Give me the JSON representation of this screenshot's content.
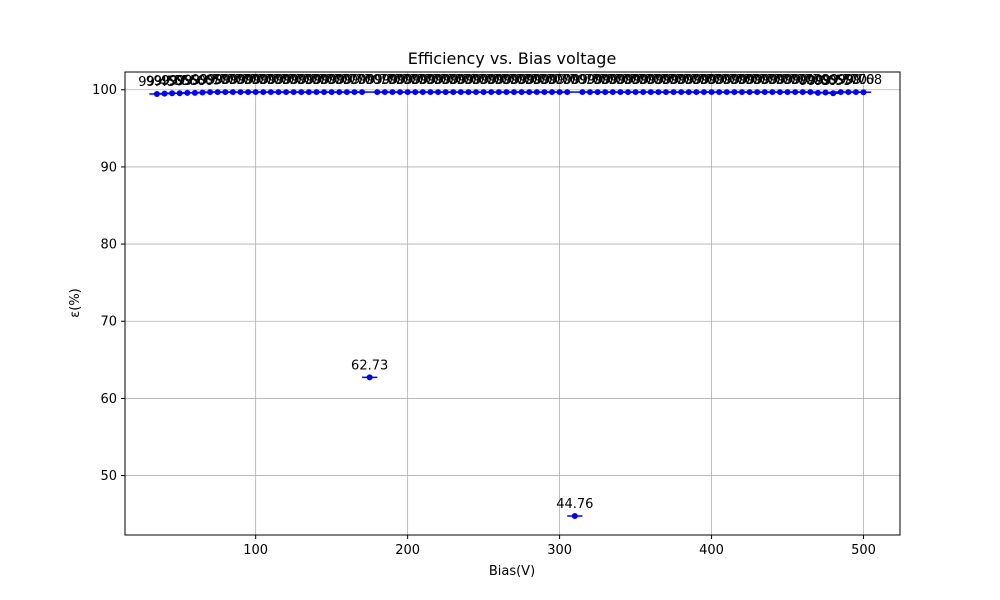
{
  "chart_data": {
    "type": "scatter",
    "title": "Efficiency vs. Bias voltage",
    "xlabel": "Bias(V)",
    "ylabel": "ε(%)",
    "xlim": [
      14,
      524
    ],
    "ylim": [
      42.3,
      102.3
    ],
    "xticks": [
      100,
      200,
      300,
      400,
      500
    ],
    "yticks": [
      50,
      60,
      70,
      80,
      90,
      100
    ],
    "grid": true,
    "marker_color": "#0000ff",
    "x_error": 5,
    "x": [
      35,
      40,
      45,
      50,
      55,
      60,
      65,
      70,
      75,
      80,
      85,
      90,
      95,
      100,
      105,
      110,
      115,
      120,
      125,
      130,
      135,
      140,
      145,
      150,
      155,
      160,
      165,
      170,
      175,
      180,
      185,
      190,
      195,
      200,
      205,
      210,
      215,
      220,
      225,
      230,
      235,
      240,
      245,
      250,
      255,
      260,
      265,
      270,
      275,
      280,
      285,
      290,
      295,
      300,
      305,
      310,
      315,
      320,
      325,
      330,
      335,
      340,
      345,
      350,
      355,
      360,
      365,
      370,
      375,
      380,
      385,
      390,
      395,
      400,
      405,
      410,
      415,
      420,
      425,
      430,
      435,
      440,
      445,
      450,
      455,
      460,
      465,
      470,
      475,
      480,
      485,
      490,
      495,
      500
    ],
    "y": [
      99.45,
      99.5,
      99.55,
      99.55,
      99.6,
      99.6,
      99.65,
      99.7,
      99.7,
      99.7,
      99.7,
      99.7,
      99.7,
      99.7,
      99.7,
      99.7,
      99.7,
      99.7,
      99.7,
      99.7,
      99.7,
      99.7,
      99.7,
      99.7,
      99.7,
      99.7,
      99.7,
      99.7,
      62.73,
      99.7,
      99.7,
      99.7,
      99.7,
      99.7,
      99.7,
      99.7,
      99.7,
      99.7,
      99.7,
      99.7,
      99.7,
      99.7,
      99.7,
      99.7,
      99.7,
      99.7,
      99.7,
      99.7,
      99.7,
      99.7,
      99.7,
      99.7,
      99.7,
      99.7,
      99.7,
      44.76,
      99.7,
      99.7,
      99.7,
      99.7,
      99.7,
      99.7,
      99.7,
      99.7,
      99.7,
      99.7,
      99.7,
      99.7,
      99.7,
      99.7,
      99.7,
      99.7,
      99.7,
      99.7,
      99.7,
      99.7,
      99.7,
      99.7,
      99.7,
      99.7,
      99.7,
      99.7,
      99.7,
      99.7,
      99.7,
      99.7,
      99.7,
      99.6,
      99.65,
      99.55,
      99.7,
      99.7,
      99.7,
      99.68
    ],
    "labels": [
      "99.45",
      "99.50",
      "99.55",
      "99.55",
      "99.60",
      "99.60",
      "99.65",
      "99.70",
      "99.70",
      "99.70",
      "99.70",
      "99.70",
      "99.70",
      "99.70",
      "99.70",
      "99.70",
      "99.70",
      "99.70",
      "99.70",
      "99.70",
      "99.70",
      "99.70",
      "99.70",
      "99.70",
      "99.70",
      "99.70",
      "99.70",
      "99.70",
      "62.73",
      "99.70",
      "99.70",
      "99.70",
      "99.70",
      "99.70",
      "99.70",
      "99.70",
      "99.70",
      "99.70",
      "99.70",
      "99.70",
      "99.70",
      "99.70",
      "99.70",
      "99.70",
      "99.70",
      "99.70",
      "99.70",
      "99.70",
      "99.70",
      "99.70",
      "99.70",
      "99.70",
      "99.70",
      "99.70",
      "99.70",
      "44.76",
      "99.70",
      "99.70",
      "99.70",
      "99.70",
      "99.70",
      "99.70",
      "99.70",
      "99.70",
      "99.70",
      "99.70",
      "99.70",
      "99.70",
      "99.70",
      "99.70",
      "99.70",
      "99.70",
      "99.70",
      "99.70",
      "99.70",
      "99.70",
      "99.70",
      "99.70",
      "99.70",
      "99.70",
      "99.70",
      "99.70",
      "99.70",
      "99.70",
      "99.70",
      "99.70",
      "99.70",
      "99.60",
      "99.65",
      "99.55",
      "99.70",
      "99.70",
      "99.70",
      "99.68"
    ]
  }
}
